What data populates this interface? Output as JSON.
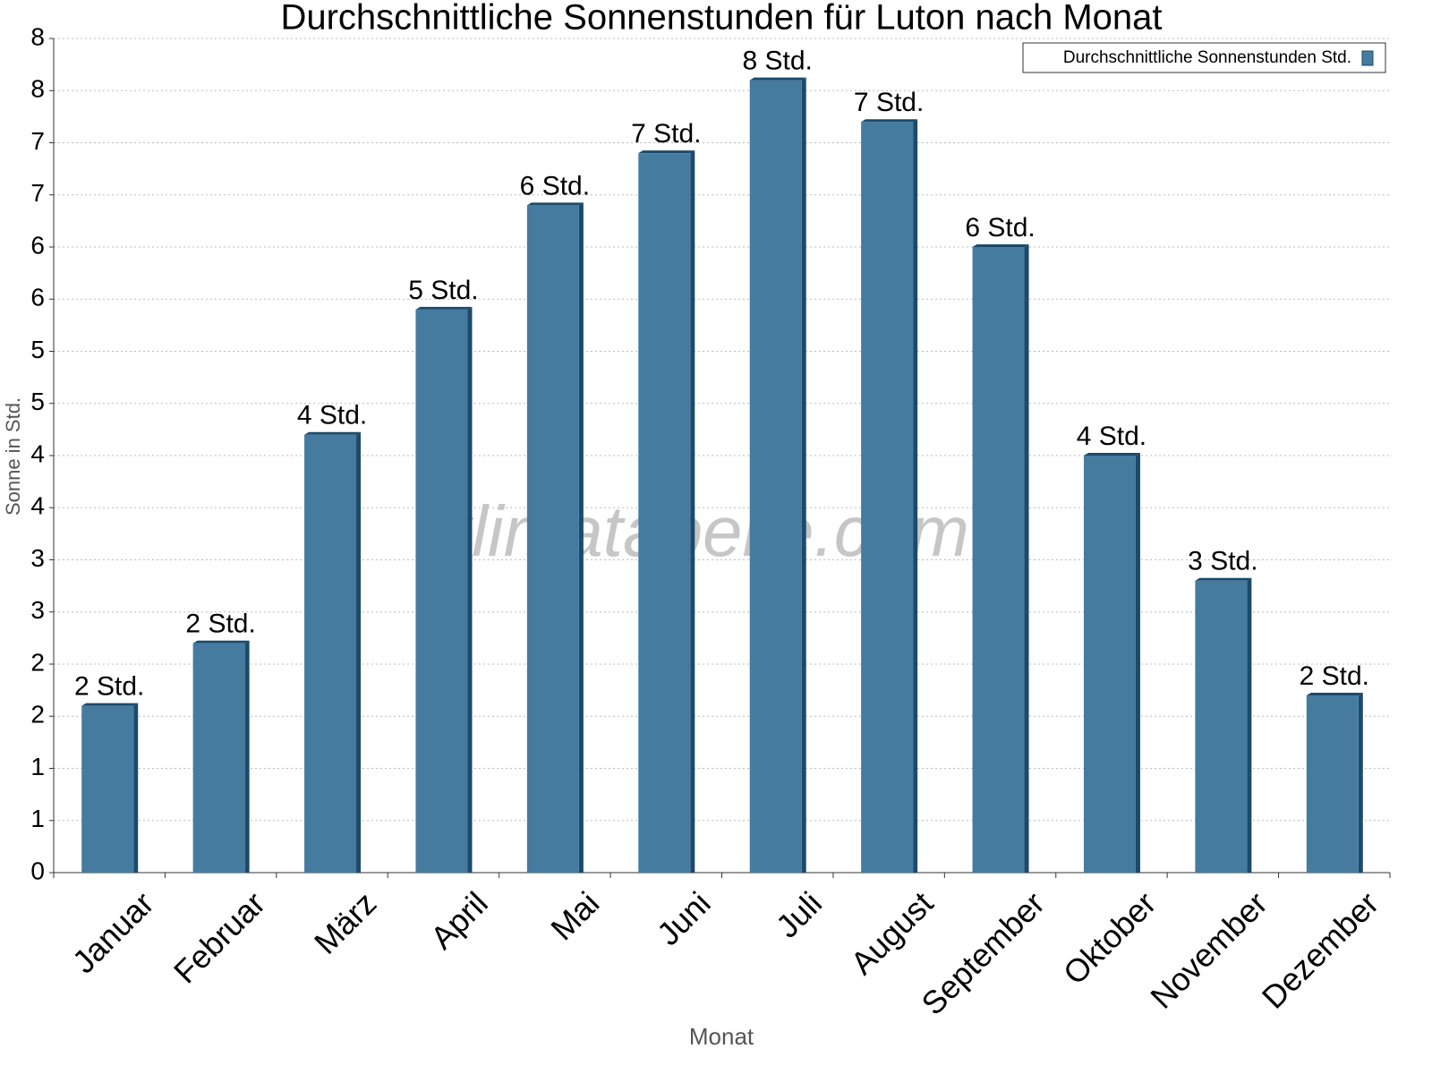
{
  "chart_data": {
    "type": "bar",
    "title": "Durchschnittliche Sonnenstunden für Luton nach Monat",
    "x_label": "Monat",
    "y_label": "Sonne in Std.",
    "watermark": "klimatabelle.com",
    "categories": [
      "Januar",
      "Februar",
      "März",
      "April",
      "Mai",
      "Juni",
      "Juli",
      "August",
      "September",
      "Oktober",
      "November",
      "Dezember"
    ],
    "series": [
      {
        "name": "Durchschnittliche Sonnenstunden Std.",
        "color": "#467ba0",
        "values": [
          1.6,
          2.2,
          4.2,
          5.4,
          6.4,
          6.9,
          7.6,
          7.2,
          6.0,
          4.0,
          2.8,
          1.7
        ],
        "value_labels": [
          "2 Std.",
          "2 Std.",
          "4 Std.",
          "5 Std.",
          "6 Std.",
          "7 Std.",
          "8 Std.",
          "7 Std.",
          "6 Std.",
          "4 Std.",
          "3 Std.",
          "2 Std."
        ]
      }
    ],
    "ylim": [
      0,
      8
    ],
    "yticks": [
      0,
      {
        "value": 0.5,
        "label": "1"
      },
      1,
      {
        "value": 1.5,
        "label": "2"
      },
      2,
      {
        "value": 2.5,
        "label": "3"
      },
      3,
      {
        "value": 3.5,
        "label": "4"
      },
      4,
      {
        "value": 4.5,
        "label": "5"
      },
      5,
      {
        "value": 5.5,
        "label": "6"
      },
      6,
      {
        "value": 6.5,
        "label": "7"
      },
      7,
      {
        "value": 7.5,
        "label": "8"
      },
      8
    ],
    "grid": true,
    "legend": "top-right"
  }
}
